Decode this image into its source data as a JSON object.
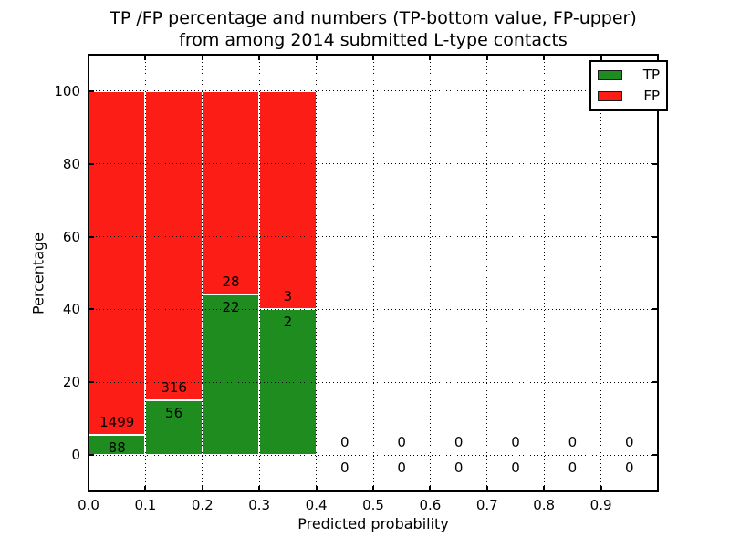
{
  "chart_data": {
    "type": "bar",
    "stacked": true,
    "normalized_to_percent": true,
    "title_lines": [
      "TP /FP percentage and numbers (TP-bottom value, FP-upper)",
      "from among 2014 submitted L-type contacts"
    ],
    "xlabel": "Predicted probability",
    "ylabel": "Percentage",
    "xlim": [
      0.0,
      1.0
    ],
    "ylim": [
      -10,
      110
    ],
    "x_tick_values": [
      0.0,
      0.1,
      0.2,
      0.3,
      0.4,
      0.5,
      0.6,
      0.7,
      0.8,
      0.9,
      1.0
    ],
    "x_tick_labels": [
      "0.0",
      "0.1",
      "0.2",
      "0.3",
      "0.4",
      "0.5",
      "0.6",
      "0.7",
      "0.8",
      "0.9"
    ],
    "y_tick_values": [
      0,
      20,
      40,
      60,
      80,
      100
    ],
    "y_tick_labels": [
      "0",
      "20",
      "40",
      "60",
      "80",
      "100"
    ],
    "grid": "dotted-black-on-top",
    "legend_position": "upper-right",
    "series": [
      {
        "name": "TP",
        "color": "#1e8c1e"
      },
      {
        "name": "FP",
        "color": "#fc1d16"
      }
    ],
    "bins": [
      {
        "range": [
          0.0,
          0.1
        ],
        "tp": 88,
        "fp": 1499
      },
      {
        "range": [
          0.1,
          0.2
        ],
        "tp": 56,
        "fp": 316
      },
      {
        "range": [
          0.2,
          0.3
        ],
        "tp": 22,
        "fp": 28
      },
      {
        "range": [
          0.3,
          0.4
        ],
        "tp": 2,
        "fp": 3
      },
      {
        "range": [
          0.4,
          0.5
        ],
        "tp": 0,
        "fp": 0
      },
      {
        "range": [
          0.5,
          0.6
        ],
        "tp": 0,
        "fp": 0
      },
      {
        "range": [
          0.6,
          0.7
        ],
        "tp": 0,
        "fp": 0
      },
      {
        "range": [
          0.7,
          0.8
        ],
        "tp": 0,
        "fp": 0
      },
      {
        "range": [
          0.8,
          0.9
        ],
        "tp": 0,
        "fp": 0
      },
      {
        "range": [
          0.9,
          1.0
        ],
        "tp": 0,
        "fp": 0
      }
    ],
    "colors": {
      "background": "#ffffff",
      "spine": "#000000",
      "grid": "#000000",
      "bar_edge": "#ffffff",
      "text": "#000000"
    }
  }
}
